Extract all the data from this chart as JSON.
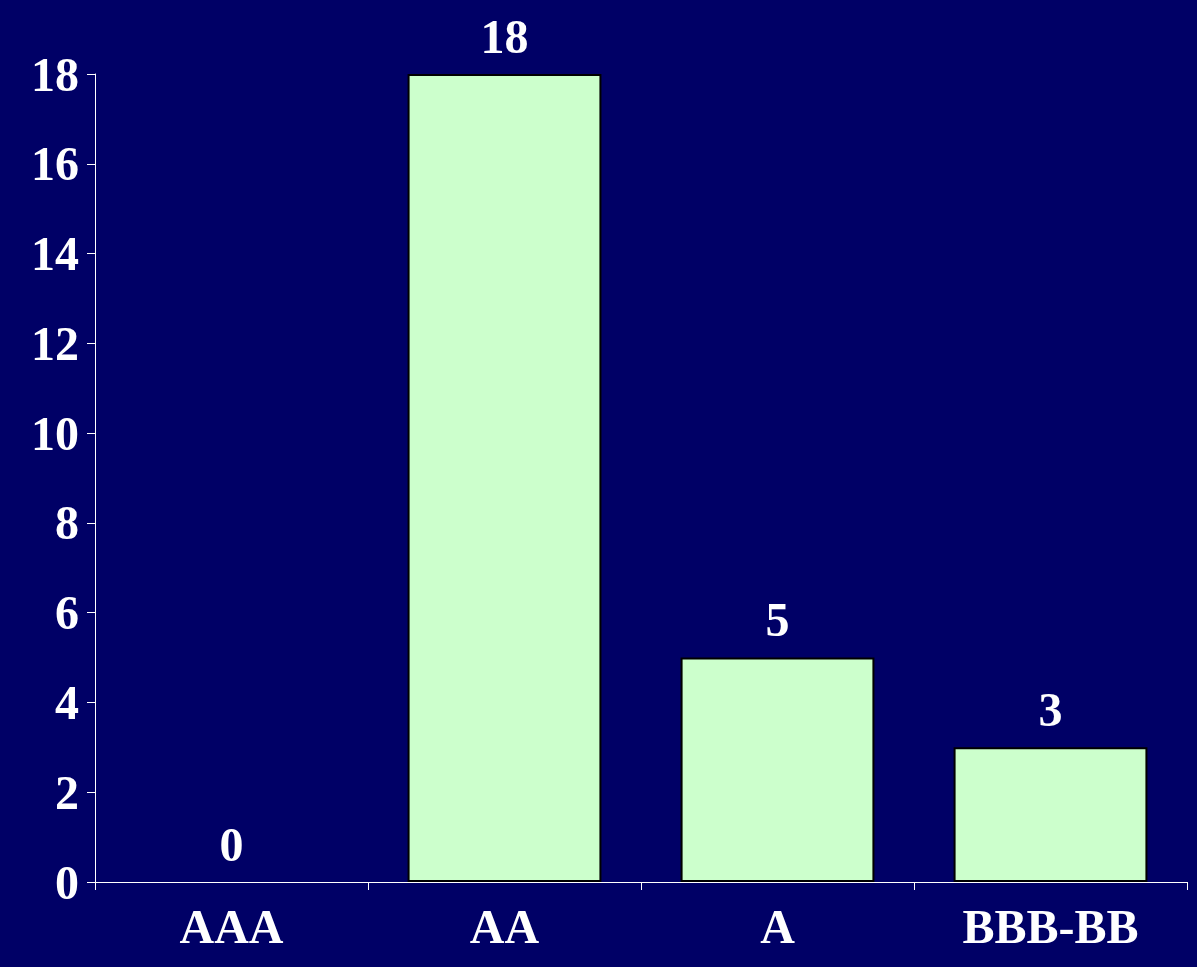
{
  "chart_data": {
    "type": "bar",
    "categories": [
      "AAA",
      "AA",
      "A",
      "BBB-BB"
    ],
    "values": [
      0,
      18,
      5,
      3
    ],
    "color": "#ccffcc",
    "ylim": [
      0,
      18
    ],
    "yticks": [
      0,
      2,
      4,
      6,
      8,
      10,
      12,
      14,
      16,
      18
    ],
    "grid": false,
    "data_labels": true
  }
}
